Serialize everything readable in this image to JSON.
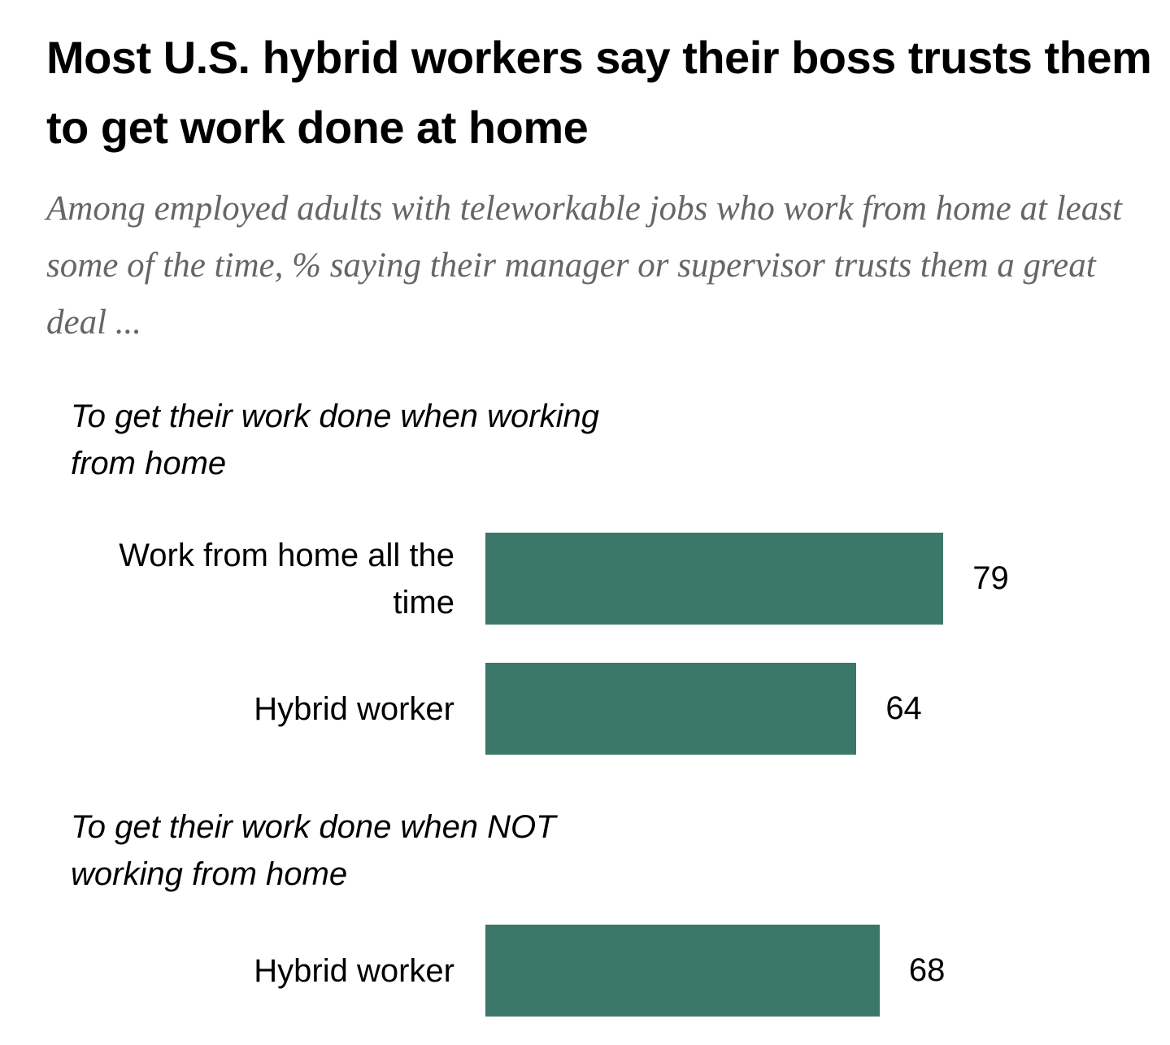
{
  "chart_data": {
    "type": "bar",
    "title": "Most U.S. hybrid workers say their boss trusts them to get work done at home",
    "subtitle": "Among employed adults with teleworkable jobs who work from home at least some of the time, % saying their manager or supervisor trusts them a great deal ...",
    "color": "#3b786a",
    "groups": [
      {
        "label": "To get their work done when working from home",
        "categories": [
          "Work from home all the time",
          "Hybrid worker"
        ],
        "values": [
          79,
          64
        ]
      },
      {
        "label": "To get their work done when NOT working from home",
        "categories": [
          "Hybrid worker"
        ],
        "values": [
          68
        ]
      }
    ]
  }
}
